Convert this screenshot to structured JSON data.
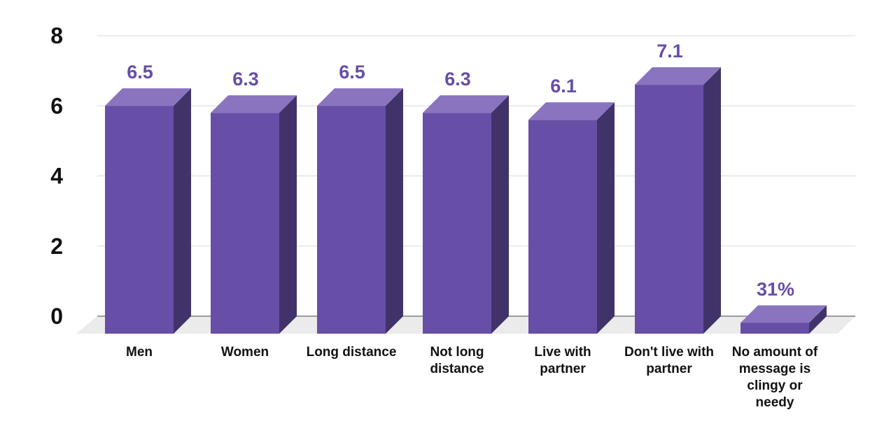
{
  "chart_data": {
    "type": "bar",
    "style": "3d-column",
    "categories": [
      "Men",
      "Women",
      "Long distance",
      "Not long distance",
      "Live with partner",
      "Don't live with partner",
      "No amount of message is clingy or needy"
    ],
    "category_label_lines": [
      [
        "Men"
      ],
      [
        "Women"
      ],
      [
        "Long distance"
      ],
      [
        "Not long",
        "distance"
      ],
      [
        "Live with",
        "partner"
      ],
      [
        "Don't live with",
        "partner"
      ],
      [
        "No amount of",
        "message is",
        "clingy or",
        "needy"
      ]
    ],
    "values": [
      6.5,
      6.3,
      6.5,
      6.3,
      6.1,
      7.1,
      0.31
    ],
    "data_labels": [
      "6.5",
      "6.3",
      "6.5",
      "6.3",
      "6.1",
      "7.1",
      "31%"
    ],
    "yticks": [
      "0",
      "2",
      "4",
      "6",
      "8"
    ],
    "ylim": [
      0,
      8
    ],
    "grid": true,
    "legend": "none",
    "colors": {
      "bar_front": "#674ea7",
      "bar_top": "#8a74bf",
      "bar_side": "#41336a",
      "label": "#674ea7",
      "floor": "#ebebeb",
      "grid": "#d9d9d9"
    }
  }
}
